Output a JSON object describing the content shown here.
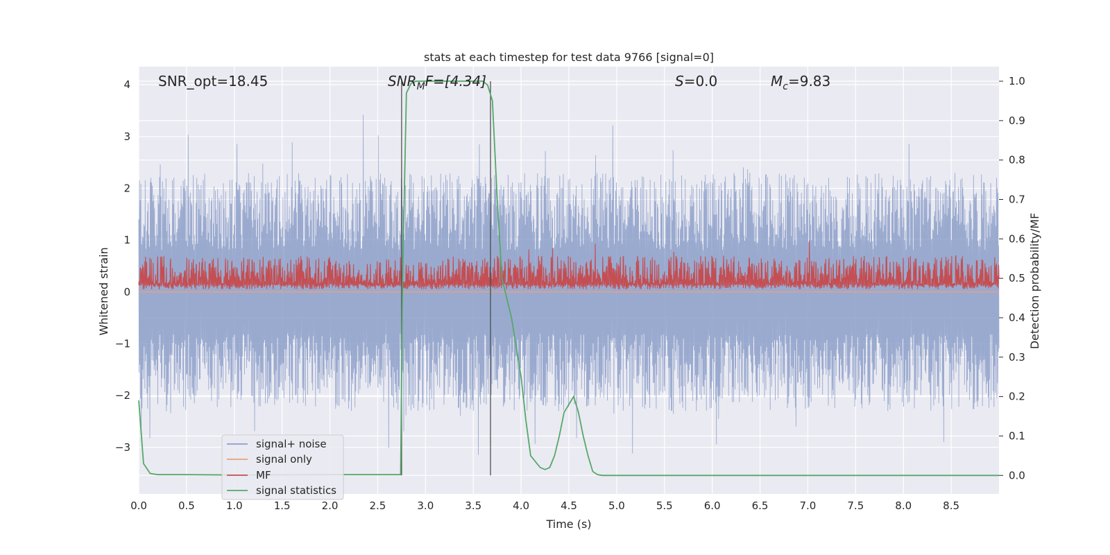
{
  "chart_data": {
    "type": "line",
    "title": "stats at each timestep for test data 9766 [signal=0]",
    "xlabel": "Time (s)",
    "ylabel": "Whitened strain",
    "y2label": "Detection probability/MF",
    "xlim": [
      0.0,
      9.0
    ],
    "ylim": [
      -3.9,
      4.35
    ],
    "y2lim": [
      -0.047,
      1.037
    ],
    "xticks": [
      "0.0",
      "0.5",
      "1.0",
      "1.5",
      "2.0",
      "2.5",
      "3.0",
      "3.5",
      "4.0",
      "4.5",
      "5.0",
      "5.5",
      "6.0",
      "6.5",
      "7.0",
      "7.5",
      "8.0",
      "8.5"
    ],
    "yticks": [
      "4",
      "3",
      "2",
      "1",
      "0",
      "−1",
      "−2",
      "−3"
    ],
    "y2ticks": [
      "1.0",
      "0.9",
      "0.8",
      "0.7",
      "0.6",
      "0.5",
      "0.4",
      "0.3",
      "0.2",
      "0.1",
      "0.0"
    ],
    "grid": true,
    "legend_position": "lower-left",
    "annotations": {
      "snr_opt": "SNR_opt=18.45",
      "snr_mf_main": "SNR",
      "snr_mf_sub": "M",
      "snr_mf_rest": "F=[4.34]",
      "s_main": "S",
      "s_rest": "=0.0",
      "mc_main": "M",
      "mc_sub": "c",
      "mc_rest": "=9.83"
    },
    "vlines_x": [
      2.75,
      3.68
    ],
    "series": [
      {
        "name": "signal+ noise",
        "color": "#8c9fc9",
        "description_values": {
          "envelope_amplitude": 2.3,
          "peak_values": [
            4.0,
            3.5,
            3.4,
            3.3
          ]
        }
      },
      {
        "name": "signal only",
        "color": "#e8a07e",
        "values": 0.0
      },
      {
        "name": "MF",
        "color": "#c44e52",
        "baseline": 0.15,
        "typical_peak": 0.7,
        "max_peak": 1.0
      },
      {
        "name": "signal statistics",
        "color": "#55a868",
        "x": [
          0.0,
          0.05,
          0.12,
          0.2,
          0.5,
          1.0,
          2.0,
          2.5,
          2.74,
          2.76,
          2.8,
          2.85,
          2.9,
          3.0,
          3.3,
          3.6,
          3.65,
          3.7,
          3.75,
          3.8,
          3.9,
          4.0,
          4.05,
          4.1,
          4.2,
          4.25,
          4.3,
          4.35,
          4.4,
          4.45,
          4.5,
          4.55,
          4.6,
          4.65,
          4.7,
          4.75,
          4.8,
          4.85,
          5.0,
          6.0,
          7.0,
          8.0,
          9.0
        ],
        "values": [
          0.19,
          0.03,
          0.005,
          0.002,
          0.002,
          0.001,
          0.002,
          0.002,
          0.002,
          0.5,
          0.97,
          0.995,
          1.0,
          1.0,
          1.0,
          1.0,
          0.99,
          0.95,
          0.7,
          0.5,
          0.4,
          0.25,
          0.14,
          0.05,
          0.02,
          0.015,
          0.02,
          0.05,
          0.1,
          0.16,
          0.18,
          0.2,
          0.16,
          0.1,
          0.05,
          0.01,
          0.002,
          0.0,
          0.0,
          0.0,
          0.0,
          0.0,
          0.0
        ]
      }
    ]
  }
}
